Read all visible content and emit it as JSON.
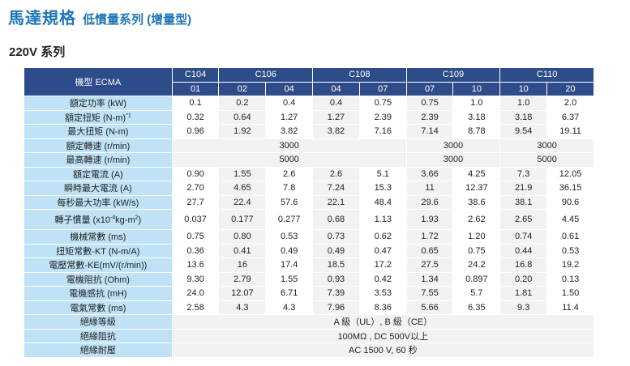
{
  "title": {
    "main": "馬達規格",
    "sub": "低慣量系列 (增量型)"
  },
  "series_label": "220V 系列",
  "table": {
    "header_label": "機型 ECMA",
    "models": [
      {
        "name": "C104",
        "sub": [
          "01"
        ]
      },
      {
        "name": "C106",
        "sub": [
          "02",
          "04"
        ]
      },
      {
        "name": "C108",
        "sub": [
          "04",
          "07"
        ]
      },
      {
        "name": "C109",
        "sub": [
          "07",
          "10"
        ]
      },
      {
        "name": "C110",
        "sub": [
          "10",
          "20"
        ]
      }
    ],
    "rows": {
      "rated_power": {
        "label": "額定功率 (kW)",
        "v": [
          "0.1",
          "0.2",
          "0.4",
          "0.4",
          "0.75",
          "0.75",
          "1.0",
          "1.0",
          "2.0"
        ]
      },
      "rated_torque": {
        "label": "額定扭矩 (N-m)",
        "sup": "*1",
        "v": [
          "0.32",
          "0.64",
          "1.27",
          "1.27",
          "2.39",
          "2.39",
          "3.18",
          "3.18",
          "6.37"
        ]
      },
      "max_torque": {
        "label": "最大扭矩 (N-m)",
        "v": [
          "0.96",
          "1.92",
          "3.82",
          "3.82",
          "7.16",
          "7.14",
          "8.78",
          "9.54",
          "19.11"
        ]
      },
      "rated_speed": {
        "label": "額定轉速 (r/min)",
        "g": [
          "3000",
          "3000",
          "3000"
        ]
      },
      "max_speed": {
        "label": "最高轉速 (r/min)",
        "g": [
          "5000",
          "3000",
          "5000"
        ]
      },
      "rated_current": {
        "label": "額定電流 (A)",
        "v": [
          "0.90",
          "1.55",
          "2.6",
          "2.6",
          "5.1",
          "3.66",
          "4.25",
          "7.3",
          "12.05"
        ]
      },
      "peak_current": {
        "label": "瞬時最大電流 (A)",
        "v": [
          "2.70",
          "4.65",
          "7.8",
          "7.24",
          "15.3",
          "11",
          "12.37",
          "21.9",
          "36.15"
        ]
      },
      "power_rate": {
        "label": "每秒最大功率 (kW/s)",
        "v": [
          "27.7",
          "22.4",
          "57.6",
          "22.1",
          "48.4",
          "29.6",
          "38.6",
          "38.1",
          "90.6"
        ]
      },
      "inertia": {
        "label_a": "轉子慣量 (x10",
        "label_sup1": "-4",
        "label_b": "kg-m",
        "label_sup2": "2",
        "label_c": ")",
        "v": [
          "0.037",
          "0.177",
          "0.277",
          "0.68",
          "1.13",
          "1.93",
          "2.62",
          "2.65",
          "4.45"
        ]
      },
      "mech_const": {
        "label": "機械常數 (ms)",
        "v": [
          "0.75",
          "0.80",
          "0.53",
          "0.73",
          "0.62",
          "1.72",
          "1.20",
          "0.74",
          "0.61"
        ]
      },
      "kt": {
        "label": "扭矩常數-KT (N-m/A)",
        "v": [
          "0.36",
          "0.41",
          "0.49",
          "0.49",
          "0.47",
          "0.65",
          "0.75",
          "0.44",
          "0.53"
        ]
      },
      "ke": {
        "label": "電壓常數-KE(mV/(r/min))",
        "v": [
          "13.6",
          "16",
          "17.4",
          "18.5",
          "17.2",
          "27.5",
          "24.2",
          "16.8",
          "19.2"
        ]
      },
      "resistance": {
        "label": "電機阻抗 (Ohm)",
        "v": [
          "9.30",
          "2.79",
          "1.55",
          "0.93",
          "0.42",
          "1.34",
          "0.897",
          "0.20",
          "0.13"
        ]
      },
      "inductance": {
        "label": "電機感抗 (mH)",
        "v": [
          "24.0",
          "12.07",
          "6.71",
          "7.39",
          "3.53",
          "7.55",
          "5.7",
          "1.81",
          "1.50"
        ]
      },
      "elec_const": {
        "label": "電氣常數 (ms)",
        "v": [
          "2.58",
          "4.3",
          "4.3",
          "7.96",
          "8.36",
          "5.66",
          "6.35",
          "9.3",
          "11.4"
        ]
      },
      "insulation_class": {
        "label": "絕緣等級",
        "value": "A 級（UL）, B 級（CE）"
      },
      "insulation_resistance": {
        "label": "絕緣阻抗",
        "value": "100MΩ , DC 500V以上"
      },
      "insulation_voltage": {
        "label": "絕緣耐壓",
        "value": "AC 1500 V, 60 秒"
      }
    }
  },
  "colors": {
    "title": "#1d76b8",
    "header": "#2f4c8a",
    "label_bg": "#bfe2f6"
  }
}
